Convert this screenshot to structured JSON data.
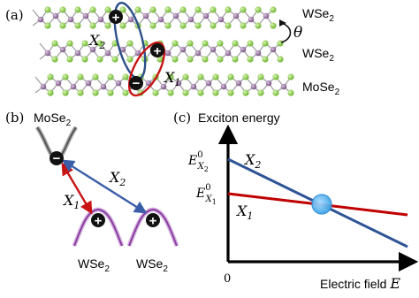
{
  "panel_a": {
    "label": "(a)",
    "layer_top": "WSe",
    "layer_top_sub": "2",
    "layer_mid": "WSe",
    "layer_mid_sub": "2",
    "layer_bot": "MoSe",
    "layer_bot_sub": "2",
    "twist_angle": "θ",
    "x2_label": "X",
    "x2_sub": "2",
    "x1_label": "X",
    "x1_sub": "1",
    "colors": {
      "chalcogen": "#8fd14f",
      "metal": "#8e6a96",
      "bond": "#9e9e9e",
      "x1_ellipse": "#c81414",
      "x2_ellipse": "#2c4f8a"
    }
  },
  "panel_b": {
    "label": "(b)",
    "band_top": "MoSe",
    "band_top_sub": "2",
    "band_left": "WSe",
    "band_left_sub": "2",
    "band_right": "WSe",
    "band_right_sub": "2",
    "x1_label": "X",
    "x1_sub": "1",
    "x2_label": "X",
    "x2_sub": "2",
    "electron_symbol": "−",
    "hole_symbol": "+",
    "colors": {
      "conduction_band": "#555555",
      "valence_band": "#8a3fa0",
      "x1_arrow": "#c81414",
      "x2_arrow": "#3b5ea8"
    }
  },
  "panel_c": {
    "label": "(c)",
    "y_axis_title": "Exciton energy",
    "x_axis_title": "Electric field ",
    "x_axis_var": "E",
    "origin_tick": "0",
    "e_x2": "E",
    "e_x2_sup": "0",
    "e_x2_sub": "X",
    "e_x2_subsub": "2",
    "e_x1": "E",
    "e_x1_sup": "0",
    "e_x1_sub": "X",
    "e_x1_subsub": "1",
    "line_x2_label": "X",
    "line_x2_sub": "2",
    "line_x1_label": "X",
    "line_x1_sub": "1",
    "colors": {
      "x2_line": "#2f5496",
      "x1_line": "#c00000",
      "crossing": "#5ab4f0"
    }
  }
}
